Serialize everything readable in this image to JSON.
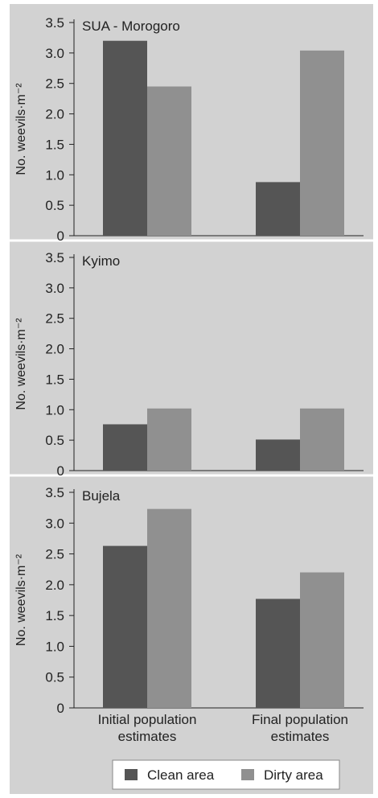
{
  "chart_data": [
    {
      "type": "bar",
      "title": "SUA - Morogoro",
      "ylabel": "No. weevils·m⁻²",
      "ylim": [
        0,
        3.5
      ],
      "yticks": [
        "0",
        "0.5",
        "1.0",
        "1.5",
        "2.0",
        "2.5",
        "3.0",
        "3.5"
      ],
      "categories": [
        "Initial population estimates",
        "Final population estimates"
      ],
      "series": [
        {
          "name": "Clean area",
          "values": [
            3.2,
            0.88
          ]
        },
        {
          "name": "Dirty area",
          "values": [
            2.45,
            3.04
          ]
        }
      ]
    },
    {
      "type": "bar",
      "title": "Kyimo",
      "ylabel": "No. weevils·m⁻²",
      "ylim": [
        0,
        3.5
      ],
      "yticks": [
        "0",
        "0.5",
        "1.0",
        "1.5",
        "2.0",
        "2.5",
        "3.0",
        "3.5"
      ],
      "categories": [
        "Initial population estimates",
        "Final population estimates"
      ],
      "series": [
        {
          "name": "Clean area",
          "values": [
            0.76,
            0.51
          ]
        },
        {
          "name": "Dirty area",
          "values": [
            1.02,
            1.02
          ]
        }
      ]
    },
    {
      "type": "bar",
      "title": "Bujela",
      "ylabel": "No. weevils·m⁻²",
      "ylim": [
        0,
        3.5
      ],
      "yticks": [
        "0",
        "0.5",
        "1.0",
        "1.5",
        "2.0",
        "2.5",
        "3.0",
        "3.5"
      ],
      "categories": [
        "Initial population estimates",
        "Final population estimates"
      ],
      "series": [
        {
          "name": "Clean area",
          "values": [
            2.63,
            1.77
          ]
        },
        {
          "name": "Dirty area",
          "values": [
            3.23,
            2.2
          ]
        }
      ]
    }
  ],
  "xaxis": {
    "labels": [
      [
        "Initial population",
        "estimates"
      ],
      [
        "Final population",
        "estimates"
      ]
    ]
  },
  "legend": {
    "placement": "bottom",
    "items": [
      {
        "name": "Clean area",
        "color": "#555555"
      },
      {
        "name": "Dirty area",
        "color": "#909090"
      }
    ]
  },
  "colors": {
    "page": "#ffffff",
    "panel": "#d2d2d2",
    "clean": "#555555",
    "dirty": "#909090",
    "text": "#222222"
  }
}
